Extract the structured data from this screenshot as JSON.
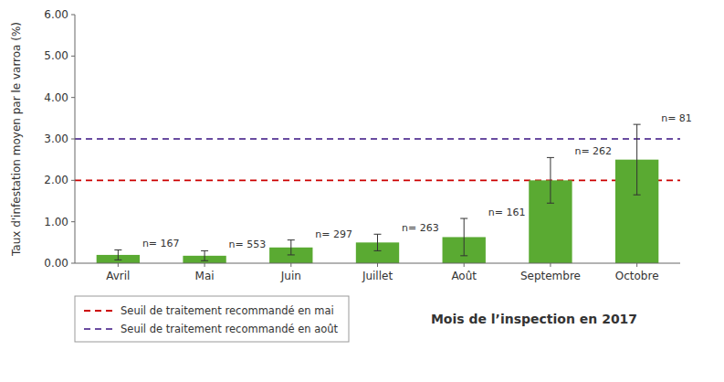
{
  "chart_data": {
    "type": "bar",
    "categories": [
      "Avril",
      "Mai",
      "Juin",
      "Juillet",
      "Août",
      "Septembre",
      "Octobre"
    ],
    "values": [
      0.2,
      0.18,
      0.38,
      0.5,
      0.63,
      2.0,
      2.5
    ],
    "errors": [
      0.12,
      0.12,
      0.18,
      0.2,
      0.45,
      0.55,
      0.85
    ],
    "annotations": [
      "n= 167",
      "n= 553",
      "n= 297",
      "n= 263",
      "n= 161",
      "n= 262",
      "n= 81"
    ],
    "color": "#5aaa32",
    "reference_lines": [
      {
        "name": "Seuil de traitement recommandé en mai",
        "value": 2.0,
        "color": "#cc0000",
        "line_style": "dashed"
      },
      {
        "name": "Seuil de traitement recommandé en août",
        "value": 3.0,
        "color": "#6a4ca0",
        "line_style": "dashed"
      }
    ],
    "ylabel": "Taux d'infestation moyen par le varroa (%)",
    "xlabel": "Mois de l’inspection en 2017",
    "ylim": [
      0,
      6.0
    ],
    "yticks": [
      {
        "value": 0.0,
        "label": "0.00"
      },
      {
        "value": 1.0,
        "label": "1.00"
      },
      {
        "value": 2.0,
        "label": "2.00"
      },
      {
        "value": 3.0,
        "label": "3.00"
      },
      {
        "value": 4.0,
        "label": "4.00"
      },
      {
        "value": 5.0,
        "label": "5.00"
      },
      {
        "value": 6.0,
        "label": "6.00"
      }
    ],
    "grid": false,
    "legend": "bottom-left"
  }
}
